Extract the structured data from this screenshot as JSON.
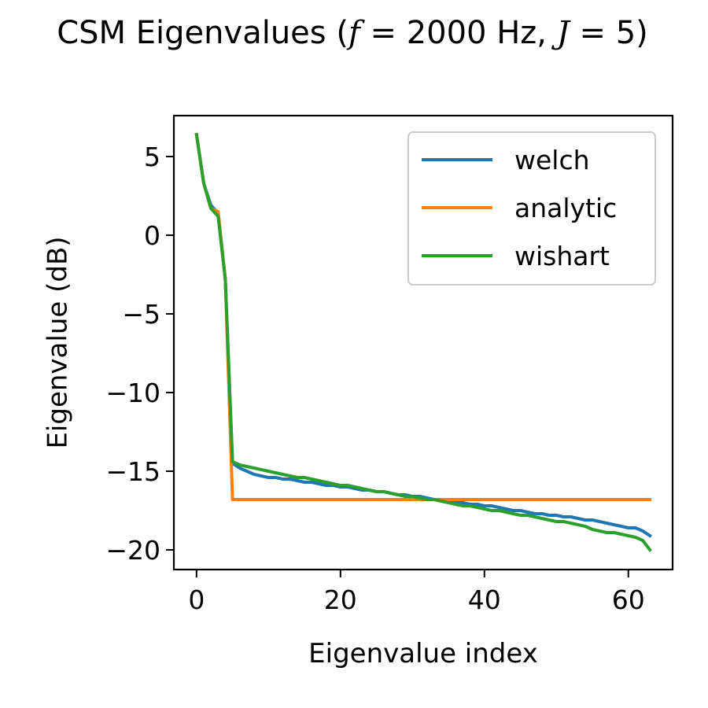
{
  "chart_data": {
    "type": "line",
    "title": "CSM Eigenvalues (f = 2000 Hz, J = 5)",
    "title_parts": {
      "prefix": "CSM Eigenvalues (",
      "f_symbol": "f",
      "f_value": " = 2000 Hz, ",
      "j_symbol": "J",
      "j_value": " = 5)"
    },
    "xlabel": "Eigenvalue index",
    "ylabel": "Eigenvalue (dB)",
    "xlim": [
      -3.15,
      66.15
    ],
    "ylim": [
      -21.25,
      7.6
    ],
    "xticks": [
      0,
      20,
      40,
      60
    ],
    "yticks": [
      5,
      0,
      -5,
      -10,
      -15,
      -20
    ],
    "xtick_labels": [
      "0",
      "20",
      "40",
      "60"
    ],
    "ytick_labels": [
      "5",
      "0",
      "−5",
      "−10",
      "−15",
      "−20"
    ],
    "grid": false,
    "legend_position": "top-right",
    "series": [
      {
        "name": "welch",
        "color": "#1f77b4",
        "x": [
          0,
          1,
          2,
          3,
          4,
          5,
          6,
          7,
          8,
          9,
          10,
          11,
          12,
          13,
          14,
          15,
          16,
          17,
          18,
          19,
          20,
          21,
          22,
          23,
          24,
          25,
          26,
          27,
          28,
          29,
          30,
          31,
          32,
          33,
          34,
          35,
          36,
          37,
          38,
          39,
          40,
          41,
          42,
          43,
          44,
          45,
          46,
          47,
          48,
          49,
          50,
          51,
          52,
          53,
          54,
          55,
          56,
          57,
          58,
          59,
          60,
          61,
          62,
          63
        ],
        "y": [
          6.4,
          3.3,
          1.9,
          1.4,
          -2.8,
          -14.5,
          -14.8,
          -15.0,
          -15.2,
          -15.3,
          -15.4,
          -15.4,
          -15.5,
          -15.5,
          -15.6,
          -15.7,
          -15.7,
          -15.8,
          -15.9,
          -15.9,
          -16.0,
          -16.0,
          -16.1,
          -16.2,
          -16.2,
          -16.3,
          -16.3,
          -16.4,
          -16.5,
          -16.5,
          -16.6,
          -16.6,
          -16.7,
          -16.8,
          -16.8,
          -16.9,
          -17.0,
          -17.0,
          -17.1,
          -17.1,
          -17.2,
          -17.2,
          -17.3,
          -17.4,
          -17.5,
          -17.5,
          -17.6,
          -17.7,
          -17.7,
          -17.8,
          -17.8,
          -17.9,
          -17.9,
          -18.0,
          -18.1,
          -18.1,
          -18.2,
          -18.3,
          -18.4,
          -18.5,
          -18.6,
          -18.6,
          -18.8,
          -19.1
        ]
      },
      {
        "name": "analytic",
        "color": "#ff7f0e",
        "x": [
          0,
          1,
          2,
          3,
          4,
          5,
          63
        ],
        "y": [
          6.4,
          3.3,
          1.7,
          1.5,
          -2.8,
          -16.8,
          -16.8
        ]
      },
      {
        "name": "wishart",
        "color": "#2ca02c",
        "x": [
          0,
          1,
          2,
          3,
          4,
          5,
          6,
          7,
          8,
          9,
          10,
          11,
          12,
          13,
          14,
          15,
          16,
          17,
          18,
          19,
          20,
          21,
          22,
          23,
          24,
          25,
          26,
          27,
          28,
          29,
          30,
          31,
          32,
          33,
          34,
          35,
          36,
          37,
          38,
          39,
          40,
          41,
          42,
          43,
          44,
          45,
          46,
          47,
          48,
          49,
          50,
          51,
          52,
          53,
          54,
          55,
          56,
          57,
          58,
          59,
          60,
          61,
          62,
          63
        ],
        "y": [
          6.4,
          3.3,
          1.7,
          1.2,
          -2.8,
          -14.4,
          -14.6,
          -14.7,
          -14.8,
          -14.9,
          -15.0,
          -15.1,
          -15.2,
          -15.3,
          -15.4,
          -15.4,
          -15.5,
          -15.6,
          -15.7,
          -15.8,
          -15.9,
          -15.9,
          -16.0,
          -16.1,
          -16.2,
          -16.3,
          -16.3,
          -16.4,
          -16.5,
          -16.6,
          -16.6,
          -16.7,
          -16.8,
          -16.8,
          -16.9,
          -17.0,
          -17.1,
          -17.2,
          -17.2,
          -17.3,
          -17.4,
          -17.5,
          -17.5,
          -17.6,
          -17.7,
          -17.8,
          -17.8,
          -17.9,
          -18.0,
          -18.1,
          -18.2,
          -18.2,
          -18.3,
          -18.4,
          -18.5,
          -18.7,
          -18.8,
          -18.9,
          -18.9,
          -19.0,
          -19.1,
          -19.2,
          -19.4,
          -20.0
        ]
      }
    ]
  }
}
